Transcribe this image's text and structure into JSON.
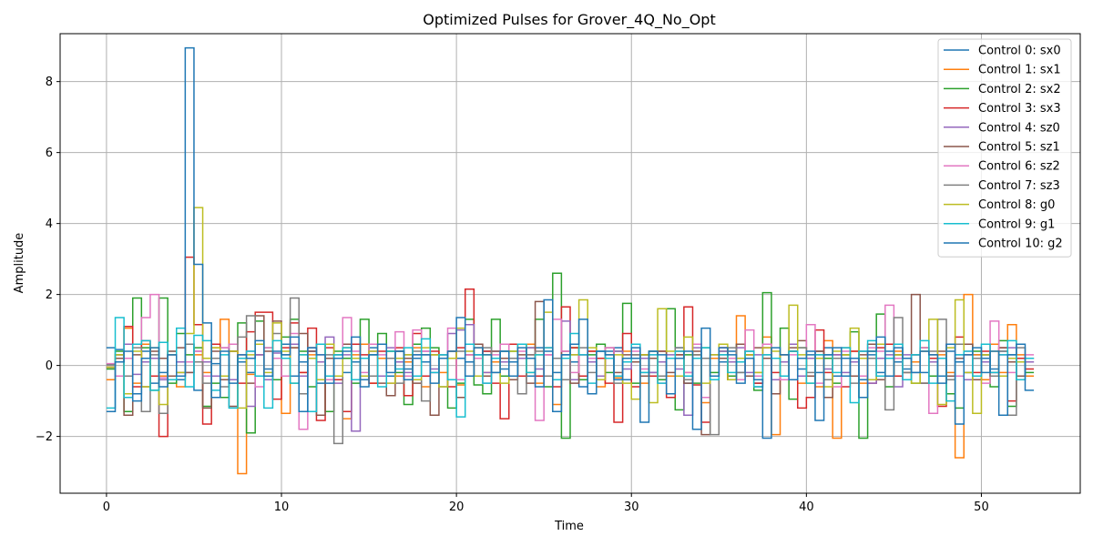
{
  "chart_data": {
    "type": "line",
    "step": "post",
    "title": "Optimized Pulses for Grover_4Q_No_Opt",
    "xlabel": "Time",
    "ylabel": "Amplitude",
    "xlim": [
      -2.65,
      55.65
    ],
    "ylim": [
      -3.6,
      9.35
    ],
    "xticks": [
      0,
      10,
      20,
      30,
      40,
      50
    ],
    "yticks": [
      -2,
      0,
      2,
      4,
      6,
      8
    ],
    "xtick_labels": [
      "0",
      "10",
      "20",
      "30",
      "40",
      "50"
    ],
    "ytick_labels": [
      "−2",
      "0",
      "2",
      "4",
      "6",
      "8"
    ],
    "grid": true,
    "legend_position": "top-right",
    "dt": 0.5,
    "series": [
      {
        "name": "Control 0: sx0",
        "color": "#1f77b4",
        "values": [
          0.5,
          0.45,
          -0.3,
          -0.8,
          0.4,
          -0.5,
          -0.2,
          0.3,
          -0.4,
          0.6,
          -0.7,
          0.2,
          0.05,
          -0.3,
          0.4,
          0.1,
          -0.2,
          0.3,
          -0.1,
          0.2,
          0.6,
          -0.3,
          0.1,
          0.4,
          -0.5,
          0.2,
          0.3,
          -0.2,
          0.1,
          -0.4,
          0.5,
          0.2,
          -0.3,
          0.4,
          -0.1,
          0.2,
          0.1,
          -0.2,
          0.3,
          -0.4,
          0.2,
          0.1,
          -0.3,
          0.4,
          0.2,
          -0.1,
          0.1,
          0.2,
          -0.3,
          0.5,
          0.4,
          -0.2,
          0.3,
          0.1,
          -0.6,
          0.2,
          -0.3,
          0.4,
          0.5,
          -0.4,
          0.2,
          0.3,
          -0.2,
          0.1,
          -0.3,
          0.5,
          -0.5,
          0.3,
          0.2,
          -0.4,
          0.1,
          0.4,
          -0.2,
          0.3,
          -0.5,
          0.2,
          0.2,
          -0.3,
          0.4,
          -0.1,
          0.3,
          -0.2,
          0.5,
          -0.3,
          0.2,
          0.1,
          -0.4,
          0.3,
          -0.2,
          0.4,
          0.1,
          -0.1,
          0.3,
          -0.2,
          0.2,
          -0.3,
          0.4,
          0.1,
          -0.2,
          0.3,
          0.2,
          -0.1,
          0.4,
          0.3,
          -0.3,
          0.1
        ]
      },
      {
        "name": "Control 1: sx1",
        "color": "#ff7f0e",
        "values": [
          -0.4,
          0.3,
          1.05,
          -0.5,
          0.6,
          0.2,
          -0.3,
          0.4,
          -0.6,
          0.1,
          0.3,
          -0.2,
          0.5,
          1.3,
          0.4,
          -3.05,
          -0.25,
          0.3,
          -0.4,
          0.2,
          -1.35,
          0.5,
          -0.2,
          0.3,
          0.6,
          -0.4,
          0.2,
          -1.5,
          0.3,
          0.6,
          -0.5,
          0.2,
          0.4,
          -0.3,
          0.1,
          0.5,
          -0.6,
          0.3,
          -0.2,
          0.4,
          -0.55,
          0.3,
          0.5,
          -0.2,
          0.1,
          0.4,
          -0.3,
          0.2,
          0.6,
          -0.5,
          0.3,
          -1.1,
          0.2,
          0.5,
          -0.3,
          0.4,
          -0.6,
          0.2,
          -0.35,
          0.4,
          0.3,
          -0.5,
          0.2,
          0.1,
          -0.3,
          0.4,
          -0.2,
          0.3,
          -1.05,
          0.2,
          0.5,
          -0.4,
          1.4,
          0.3,
          -0.2,
          0.8,
          -1.95,
          0.3,
          0.4,
          -0.5,
          0.2,
          -0.6,
          0.7,
          -2.05,
          0.3,
          0.4,
          -0.5,
          0.2,
          0.6,
          -0.3,
          0.4,
          -0.2,
          0.1,
          0.5,
          -0.3,
          0.3,
          -0.2,
          -2.6,
          2.0,
          0.3,
          -0.4,
          0.6,
          -0.2,
          1.15,
          0.3,
          -0.3
        ]
      },
      {
        "name": "Control 2: sx2",
        "color": "#2ca02c",
        "values": [
          -0.1,
          0.4,
          -1.3,
          1.9,
          0.5,
          -0.7,
          1.9,
          -0.5,
          0.9,
          0.3,
          0.5,
          -1.15,
          -0.5,
          -0.9,
          0.6,
          1.2,
          -1.9,
          1.25,
          0.5,
          -0.4,
          0.8,
          1.3,
          0.4,
          -0.6,
          0.6,
          -1.3,
          0.4,
          0.2,
          -0.5,
          1.3,
          -0.3,
          0.9,
          0.4,
          -0.2,
          -1.1,
          0.6,
          1.05,
          0.5,
          0.3,
          -1.2,
          -0.5,
          1.3,
          -0.55,
          -0.8,
          1.3,
          -0.3,
          0.4,
          -0.3,
          0.5,
          1.3,
          -0.6,
          2.6,
          -2.05,
          0.5,
          -0.4,
          0.3,
          0.6,
          -0.2,
          0.4,
          1.75,
          -0.5,
          0.3,
          0.4,
          -0.4,
          1.6,
          -1.25,
          0.3,
          -0.5,
          0.5,
          -0.2,
          0.4,
          -0.3,
          0.6,
          0.2,
          -0.7,
          2.05,
          -0.4,
          1.05,
          -0.95,
          0.5,
          -0.3,
          0.4,
          0.2,
          -0.5,
          0.3,
          0.95,
          -2.05,
          0.4,
          1.45,
          -0.6,
          0.3,
          0.2,
          -0.5,
          0.5,
          -0.3,
          0.2,
          -0.8,
          -1.2,
          0.6,
          0.4,
          0.3,
          -0.6,
          0.7,
          -1.15,
          0.2,
          -0.2
        ]
      },
      {
        "name": "Control 3: sx3",
        "color": "#d62728",
        "values": [
          -0.05,
          -0.3,
          1.1,
          -0.6,
          0.7,
          -0.3,
          -2.0,
          0.4,
          -0.3,
          3.05,
          1.15,
          -1.65,
          0.6,
          -0.3,
          0.4,
          -0.5,
          0.95,
          1.5,
          1.5,
          -0.95,
          0.5,
          1.2,
          -0.2,
          1.05,
          -1.55,
          0.5,
          -0.4,
          -1.3,
          0.6,
          0.3,
          -0.5,
          0.4,
          0.2,
          0.5,
          -0.85,
          0.9,
          -0.3,
          0.4,
          0.2,
          -0.6,
          0.5,
          2.15,
          -0.3,
          0.4,
          -0.5,
          -1.5,
          0.6,
          -0.3,
          0.3,
          -0.3,
          0.5,
          -0.6,
          1.65,
          0.5,
          -0.3,
          0.4,
          0.2,
          -0.5,
          -1.6,
          0.9,
          -0.6,
          0.3,
          -0.3,
          0.4,
          -0.9,
          0.3,
          1.65,
          -0.55,
          -1.6,
          -0.3,
          0.5,
          -0.4,
          0.2,
          0.3,
          -0.5,
          0.5,
          -0.2,
          -0.3,
          0.4,
          -1.2,
          -0.9,
          1.0,
          -0.2,
          0.3,
          -0.6,
          0.4,
          0.2,
          -0.5,
          0.5,
          0.6,
          -0.3,
          -0.4,
          0.3,
          -0.5,
          0.2,
          -1.15,
          0.6,
          0.8,
          0.3,
          -0.2,
          0.4,
          -0.3,
          0.5,
          -1.0,
          0.2,
          -0.1
        ]
      },
      {
        "name": "Control 4: sz0",
        "color": "#9467bd",
        "values": [
          0.02,
          0.3,
          0.6,
          -0.25,
          0.1,
          0.2,
          -0.4,
          0.3,
          0.1,
          -0.2,
          0.4,
          0.1,
          -0.3,
          0.5,
          -0.4,
          0.2,
          -1.15,
          0.3,
          -0.4,
          0.35,
          0.2,
          0.6,
          -0.3,
          0.4,
          0.1,
          0.8,
          -0.5,
          0.3,
          -1.85,
          0.2,
          0.4,
          -0.3,
          0.5,
          0.1,
          -0.2,
          0.3,
          0.4,
          -0.1,
          0.2,
          0.9,
          1.0,
          1.15,
          0.3,
          -0.2,
          0.4,
          0.1,
          -0.3,
          0.2,
          0.5,
          -0.1,
          0.3,
          0.2,
          1.25,
          -0.4,
          0.3,
          0.1,
          -0.3,
          0.2,
          0.4,
          -0.1,
          0.3,
          0.2,
          -0.2,
          0.1,
          0.3,
          -0.1,
          -1.4,
          0.5,
          0.2,
          -0.3,
          0.4,
          0.1,
          0.5,
          -0.2,
          0.3,
          0.2,
          -0.4,
          0.1,
          0.6,
          -0.3,
          0.2,
          0.4,
          -0.1,
          0.3,
          -0.2,
          0.1,
          0.4,
          -0.5,
          0.2,
          0.3,
          -0.6,
          0.3,
          -0.2,
          0.4,
          0.1,
          0.2,
          -0.3,
          0.3,
          -0.4,
          0.2,
          0.1,
          -0.2,
          0.3,
          0.5,
          -0.3,
          0.1
        ]
      },
      {
        "name": "Control 5: sz1",
        "color": "#8c564b",
        "values": [
          -0.05,
          0.2,
          -1.4,
          0.3,
          -0.6,
          0.4,
          0.2,
          -0.3,
          0.5,
          -0.2,
          0.1,
          -1.2,
          0.4,
          -0.4,
          -1.15,
          0.3,
          -0.5,
          1.4,
          0.4,
          1.25,
          -0.3,
          0.5,
          0.9,
          0.4,
          -1.4,
          0.2,
          0.3,
          0.6,
          -0.4,
          0.2,
          0.3,
          -0.5,
          -0.85,
          0.4,
          0.2,
          -0.5,
          0.3,
          -1.4,
          0.2,
          0.4,
          -0.9,
          0.3,
          0.6,
          -0.3,
          0.4,
          0.2,
          -0.4,
          0.3,
          -0.5,
          1.8,
          -0.3,
          0.2,
          0.4,
          -0.5,
          0.3,
          0.2,
          -0.4,
          0.5,
          -0.2,
          0.3,
          0.1,
          -0.3,
          0.2,
          0.4,
          -0.2,
          0.3,
          -0.5,
          0.4,
          -1.95,
          0.3,
          0.2,
          -0.4,
          0.6,
          -0.3,
          0.5,
          0.2,
          -0.8,
          0.3,
          0.5,
          0.7,
          -0.3,
          0.4,
          -0.9,
          0.2,
          0.5,
          -0.3,
          0.3,
          0.6,
          -0.4,
          0.2,
          0.3,
          -0.2,
          2.0,
          -0.5,
          0.3,
          0.4,
          -0.3,
          0.2,
          0.6,
          -0.4,
          0.3,
          -0.2,
          0.5,
          0.1,
          -0.3,
          0.2
        ]
      },
      {
        "name": "Control 6: sz2",
        "color": "#e377c2",
        "values": [
          0.05,
          -0.3,
          0.2,
          0.6,
          1.35,
          2.0,
          -0.35,
          0.3,
          -0.2,
          0.1,
          0.4,
          -0.3,
          0.2,
          0.5,
          0.6,
          0.3,
          0.4,
          -0.6,
          0.5,
          0.2,
          -0.3,
          0.9,
          -1.8,
          0.5,
          0.3,
          -0.4,
          0.2,
          1.35,
          0.4,
          -0.2,
          0.6,
          0.3,
          -0.5,
          0.95,
          -0.3,
          1.0,
          0.4,
          -0.2,
          0.3,
          1.05,
          -0.4,
          0.3,
          0.2,
          -0.5,
          0.3,
          0.6,
          -0.3,
          0.4,
          0.2,
          -1.55,
          0.3,
          1.3,
          0.4,
          -0.2,
          0.3,
          0.2,
          -0.4,
          0.5,
          -0.3,
          0.2,
          0.4,
          -0.1,
          0.3,
          -0.5,
          0.2,
          0.4,
          -0.2,
          0.6,
          -0.9,
          -0.3,
          0.5,
          0.2,
          -0.4,
          1.0,
          -0.3,
          0.6,
          0.2,
          -0.4,
          0.3,
          0.2,
          1.15,
          -0.5,
          0.3,
          -0.6,
          0.4,
          0.2,
          -0.3,
          0.5,
          0.4,
          1.7,
          0.2,
          -0.4,
          0.3,
          0.5,
          -1.35,
          0.2,
          0.6,
          -0.3,
          0.4,
          0.2,
          -0.5,
          1.25,
          0.3,
          -0.2,
          0.1,
          0.3
        ]
      },
      {
        "name": "Control 7: sz3",
        "color": "#7f7f7f",
        "values": [
          0.02,
          0.3,
          -0.3,
          0.5,
          -1.3,
          0.3,
          -1.35,
          0.4,
          -0.2,
          0.6,
          0.1,
          -0.5,
          0.2,
          -0.6,
          0.4,
          0.8,
          1.4,
          0.6,
          -0.3,
          0.9,
          0.3,
          1.9,
          -0.8,
          0.5,
          -0.4,
          0.3,
          -2.2,
          0.5,
          -0.4,
          0.2,
          -0.3,
          0.6,
          0.2,
          -0.5,
          0.3,
          0.4,
          -1.0,
          0.3,
          -0.6,
          0.2,
          0.4,
          -0.3,
          0.3,
          0.5,
          -0.2,
          0.4,
          0.2,
          -0.8,
          0.3,
          0.4,
          -0.3,
          0.2,
          -0.4,
          0.3,
          0.5,
          -0.2,
          0.4,
          0.3,
          -0.5,
          0.2,
          0.3,
          -0.2,
          0.4,
          -0.3,
          0.2,
          0.5,
          -0.4,
          0.3,
          0.2,
          -1.95,
          0.3,
          0.5,
          -0.2,
          0.4,
          -0.6,
          0.3,
          0.2,
          -0.3,
          0.4,
          0.5,
          -0.2,
          0.3,
          -0.4,
          0.2,
          0.3,
          -0.5,
          0.4,
          0.2,
          -0.3,
          -1.25,
          1.35,
          -0.2,
          0.3,
          -0.5,
          0.4,
          1.3,
          -0.4,
          0.6,
          -0.2,
          0.2,
          0.3,
          -0.3,
          0.4,
          -1.4,
          0.5,
          0.2
        ]
      },
      {
        "name": "Control 8: g0",
        "color": "#bcbd22",
        "values": [
          -0.05,
          0.3,
          -0.8,
          0.4,
          -0.6,
          0.5,
          -1.1,
          0.3,
          -0.2,
          0.9,
          4.45,
          0.2,
          0.5,
          -0.3,
          0.4,
          -1.2,
          0.3,
          0.6,
          -0.2,
          1.2,
          0.4,
          -0.5,
          0.3,
          0.2,
          -0.4,
          0.6,
          -0.3,
          0.5,
          0.2,
          -0.3,
          0.4,
          0.6,
          -0.5,
          0.2,
          0.3,
          -0.4,
          0.5,
          0.3,
          -0.6,
          0.2,
          1.05,
          0.4,
          -0.3,
          0.3,
          0.2,
          -0.5,
          0.4,
          0.6,
          -0.2,
          0.3,
          1.5,
          -0.4,
          0.2,
          0.3,
          1.85,
          0.5,
          -0.4,
          0.2,
          0.3,
          -0.5,
          -0.95,
          0.3,
          -1.05,
          1.6,
          0.4,
          -0.3,
          0.8,
          0.2,
          -0.5,
          0.3,
          0.6,
          -0.4,
          0.2,
          0.3,
          -0.2,
          0.5,
          0.4,
          -0.3,
          1.7,
          0.3,
          -0.5,
          0.2,
          -0.6,
          0.4,
          0.3,
          1.05,
          0.2,
          -0.4,
          0.6,
          -0.3,
          0.3,
          0.2,
          -0.5,
          0.4,
          1.3,
          -1.1,
          0.5,
          1.85,
          -0.2,
          -1.35,
          0.3,
          0.4,
          -0.3,
          0.2,
          0.1,
          0.2
        ]
      },
      {
        "name": "Control 9: g1",
        "color": "#17becf",
        "values": [
          -1.2,
          1.35,
          -0.9,
          0.6,
          0.7,
          -0.7,
          0.65,
          -0.4,
          1.05,
          -0.6,
          0.85,
          0.7,
          -0.7,
          0.3,
          -1.2,
          0.2,
          0.4,
          -0.3,
          -1.2,
          0.7,
          0.2,
          -0.5,
          0.3,
          -1.3,
          0.6,
          -0.3,
          0.3,
          0.5,
          -0.4,
          0.2,
          0.3,
          -0.6,
          0.4,
          -0.1,
          0.5,
          -0.3,
          0.75,
          -0.2,
          0.3,
          -0.4,
          -1.45,
          0.6,
          0.3,
          -0.5,
          0.2,
          0.4,
          -0.3,
          0.6,
          -0.2,
          0.3,
          0.5,
          -0.4,
          0.2,
          0.9,
          0.3,
          -0.5,
          0.4,
          0.2,
          -0.3,
          0.1,
          0.6,
          -0.2,
          0.3,
          -0.5,
          0.2,
          0.4,
          -0.3,
          0.2,
          0.5,
          -0.4,
          0.3,
          -0.2,
          0.1,
          0.4,
          -0.6,
          0.3,
          0.2,
          -0.3,
          0.4,
          0.2,
          -0.5,
          0.3,
          0.3,
          -0.2,
          0.5,
          -1.05,
          0.4,
          0.7,
          -0.3,
          0.2,
          0.6,
          -0.4,
          0.3,
          0.7,
          -0.5,
          0.2,
          -1.0,
          0.3,
          0.4,
          -0.3,
          0.6,
          -0.2,
          0.3,
          0.7,
          -0.4,
          0.2
        ]
      },
      {
        "name": "Control 10: g2",
        "color": "#1f77b4",
        "values": [
          -1.3,
          0.1,
          0.4,
          -1.0,
          0.2,
          0.5,
          -0.6,
          0.3,
          -0.3,
          8.95,
          2.85,
          1.2,
          -0.9,
          0.4,
          -0.5,
          0.3,
          0.2,
          0.7,
          -0.3,
          0.4,
          0.3,
          0.8,
          -1.3,
          0.5,
          0.3,
          -0.5,
          0.2,
          0.4,
          0.8,
          -0.6,
          0.3,
          0.6,
          -0.2,
          0.4,
          -0.4,
          0.3,
          0.3,
          -0.5,
          0.2,
          0.4,
          1.35,
          -0.3,
          0.5,
          0.3,
          -0.2,
          0.4,
          -0.3,
          0.5,
          0.2,
          -0.6,
          1.85,
          -1.3,
          0.3,
          0.6,
          1.3,
          -0.8,
          0.4,
          0.3,
          -0.4,
          0.2,
          0.5,
          -1.6,
          0.4,
          0.3,
          -0.8,
          0.2,
          0.4,
          -1.8,
          1.05,
          -0.3,
          0.5,
          0.3,
          -0.5,
          0.2,
          -0.4,
          -2.05,
          0.5,
          0.3,
          -0.4,
          0.2,
          0.4,
          -1.55,
          0.3,
          0.5,
          -0.3,
          0.2,
          -0.9,
          0.4,
          0.8,
          -0.3,
          0.5,
          0.2,
          -0.2,
          0.4,
          0.3,
          -0.5,
          0.6,
          -1.65,
          0.3,
          0.5,
          -0.2,
          0.4,
          -1.4,
          0.3,
          0.6,
          -0.7
        ]
      }
    ]
  }
}
